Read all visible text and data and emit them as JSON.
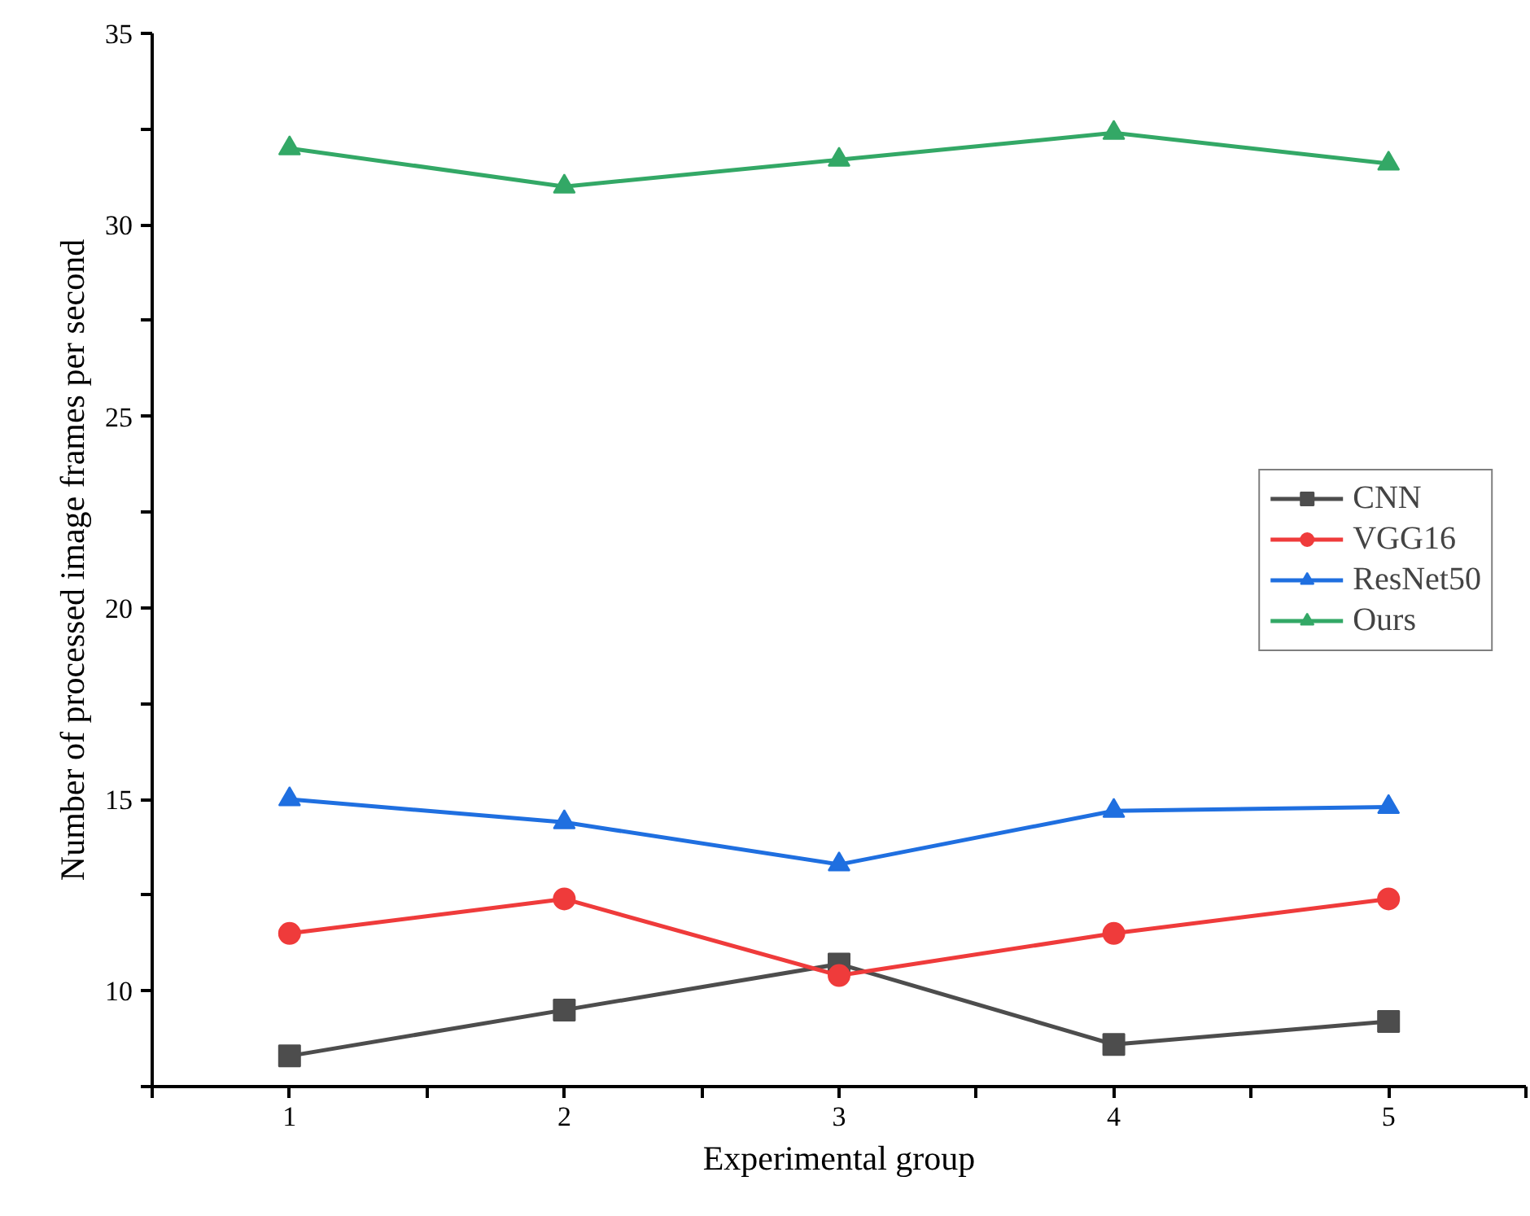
{
  "chart_data": {
    "type": "line",
    "xlabel": "Experimental group",
    "ylabel": "Number of processed image frames per second",
    "x": [
      1,
      2,
      3,
      4,
      5
    ],
    "series": [
      {
        "name": "CNN",
        "color": "#4d4d4d",
        "marker": "square",
        "values": [
          8.3,
          9.5,
          10.7,
          8.6,
          9.2
        ]
      },
      {
        "name": "VGG16",
        "color": "#ef3b3b",
        "marker": "circle",
        "values": [
          11.5,
          12.4,
          10.4,
          11.5,
          12.4
        ]
      },
      {
        "name": "ResNet50",
        "color": "#1f6fe0",
        "marker": "triangle",
        "values": [
          15.0,
          14.4,
          13.3,
          14.7,
          14.8
        ]
      },
      {
        "name": "Ours",
        "color": "#33a866",
        "marker": "triangle",
        "values": [
          32.0,
          31.0,
          31.7,
          32.4,
          31.6
        ]
      }
    ],
    "xlim": [
      0.5,
      5.5
    ],
    "xticks": [
      {
        "value": 0.5,
        "label": null
      },
      1,
      {
        "value": 1.5,
        "label": null
      },
      2,
      {
        "value": 2.5,
        "label": null
      },
      3,
      {
        "value": 3.5,
        "label": null
      },
      4,
      {
        "value": 4.5,
        "label": null
      },
      5,
      {
        "value": 5.5,
        "label": null
      }
    ],
    "ylim": [
      7.5,
      35
    ],
    "yticks": [
      {
        "value": 7.5,
        "label": null
      },
      10,
      {
        "value": 12.5,
        "label": null
      },
      15,
      {
        "value": 17.5,
        "label": null
      },
      20,
      {
        "value": 22.5,
        "label": null
      },
      25,
      {
        "value": 27.5,
        "label": null
      },
      30,
      {
        "value": 32.5,
        "label": null
      },
      35
    ],
    "grid": false,
    "legend": "right",
    "line_style": "solid"
  }
}
